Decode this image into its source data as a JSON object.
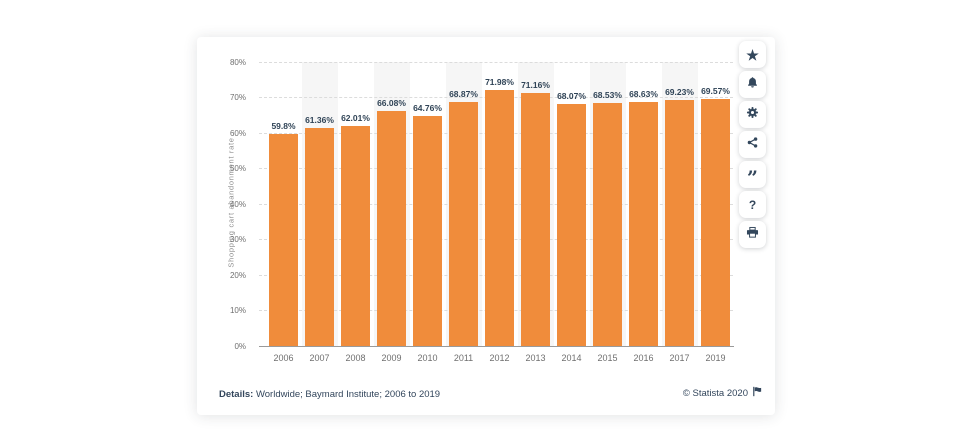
{
  "chart_data": {
    "type": "bar",
    "categories": [
      "2006",
      "2007",
      "2008",
      "2009",
      "2010",
      "2011",
      "2012",
      "2013",
      "2014",
      "2015",
      "2016",
      "2017",
      "2019"
    ],
    "values": [
      59.8,
      61.36,
      62.01,
      66.08,
      64.76,
      68.87,
      71.98,
      71.16,
      68.07,
      68.53,
      68.63,
      69.23,
      69.57
    ],
    "value_labels": [
      "59.8%",
      "61.36%",
      "62.01%",
      "66.08%",
      "64.76%",
      "68.87%",
      "71.98%",
      "71.16%",
      "68.07%",
      "68.53%",
      "68.63%",
      "69.23%",
      "69.57%"
    ],
    "ylabel": "Shopping cart abandonment rate",
    "xlabel": "",
    "ylim": [
      0,
      80
    ],
    "ytick_step": 10,
    "ytick_suffix": "%",
    "grid": true,
    "alternating_column_bands": true,
    "legend": false,
    "bar_color": "#f08c3b",
    "band_color": "#f6f6f6"
  },
  "toolbar": {
    "buttons": [
      {
        "name": "favorite",
        "icon": "star-icon"
      },
      {
        "name": "notifications",
        "icon": "bell-icon"
      },
      {
        "name": "settings",
        "icon": "gear-icon"
      },
      {
        "name": "share",
        "icon": "share-icon"
      },
      {
        "name": "cite",
        "icon": "quote-icon"
      },
      {
        "name": "help",
        "icon": "question-icon"
      },
      {
        "name": "print",
        "icon": "printer-icon"
      }
    ],
    "star_glyph": "★",
    "question_glyph": "?",
    "quote_glyph": "”"
  },
  "footer": {
    "details_label": "Details:",
    "details_text": " Worldwide; Baymard Institute; 2006 to 2019",
    "copyright": "© Statista 2020"
  },
  "colors": {
    "bar": "#f08c3b",
    "band": "#f6f6f6",
    "gridline": "#dcdcdc",
    "axis": "#9a9a9a",
    "tick_text": "#6f6f6f",
    "value_text": "#2f4356",
    "navy": "#33475c"
  }
}
